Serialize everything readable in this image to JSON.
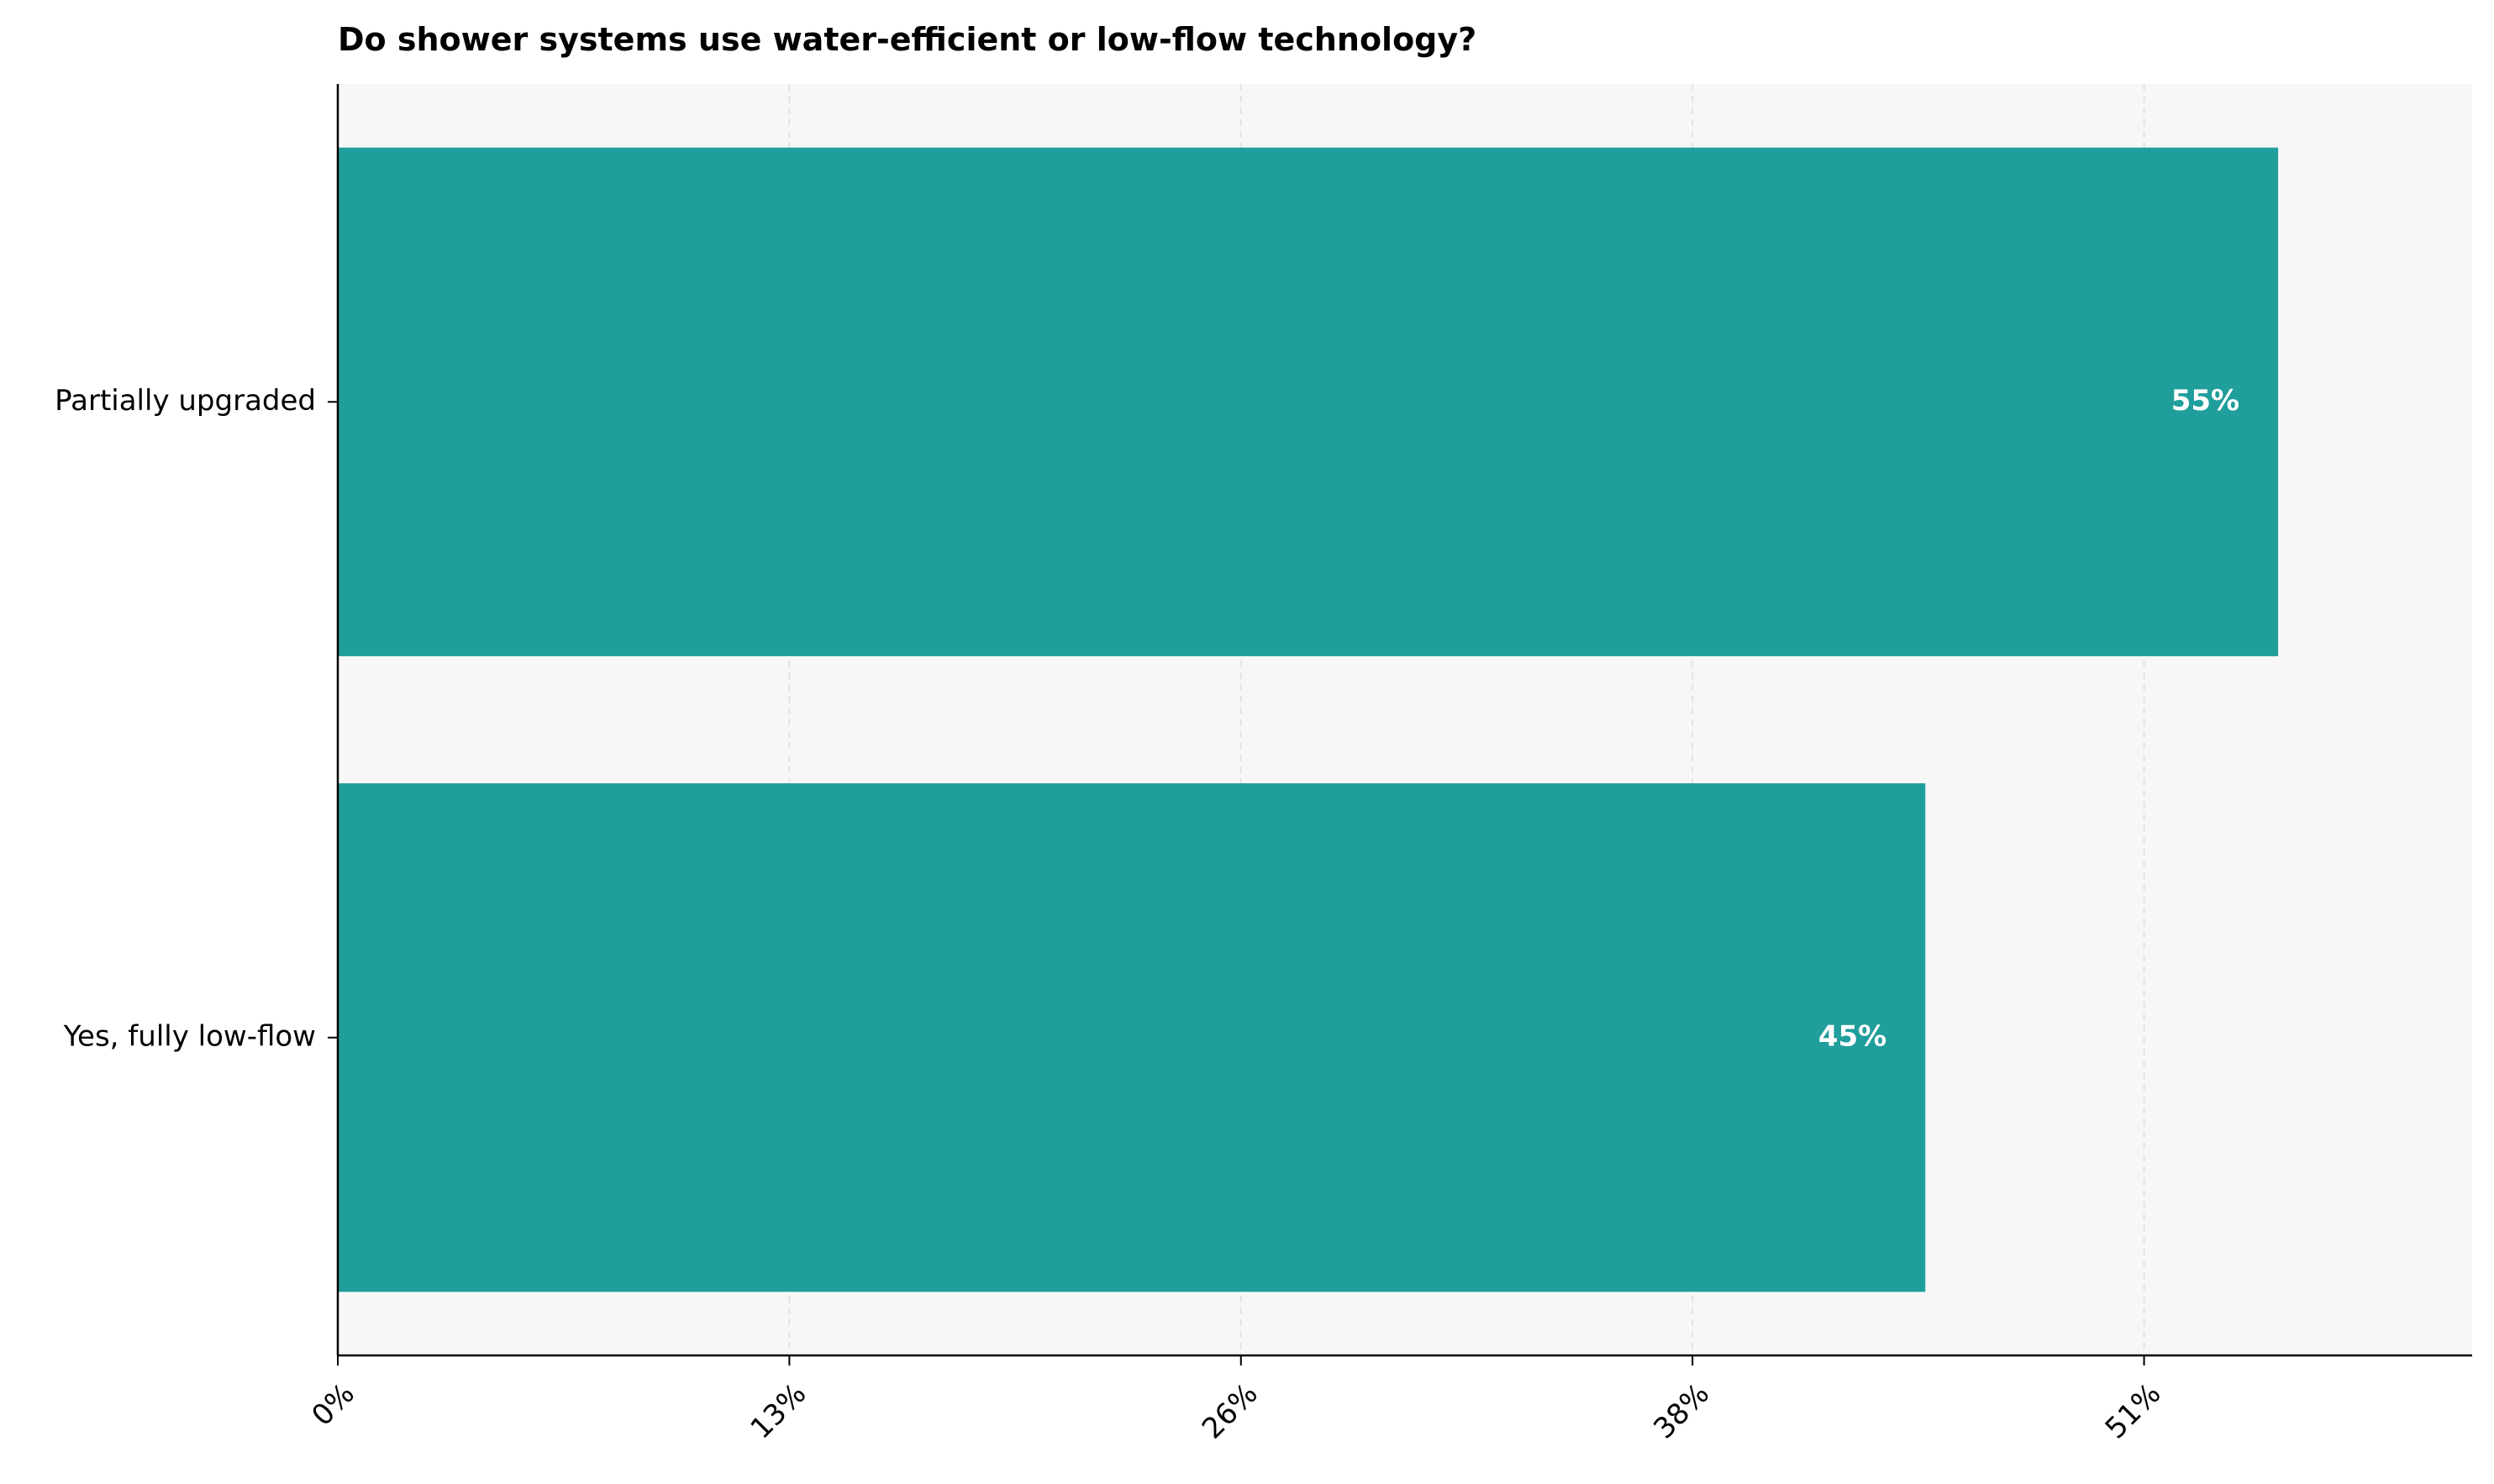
{
  "chart_data": {
    "type": "bar",
    "orientation": "horizontal",
    "title": "Do shower systems use water-efficient or low-flow technology?",
    "xlabel": "",
    "ylabel": "",
    "categories": [
      "Partially upgraded",
      "Yes, fully low-flow"
    ],
    "values": [
      55,
      45
    ],
    "value_labels": [
      "55%",
      "45%"
    ],
    "x_ticks": [
      0,
      12.8,
      25.6,
      38.4,
      51.2
    ],
    "x_tick_labels": [
      "0%",
      "13%",
      "26%",
      "38%",
      "51%"
    ],
    "xlim": [
      0,
      60.5
    ],
    "grid": "vertical dashed",
    "legend": "none",
    "colors": {
      "bar": "#1f9e9b",
      "plot_background": "#f7f7f7",
      "bar_label": "#ffffff",
      "grid": "#dddddd"
    }
  }
}
